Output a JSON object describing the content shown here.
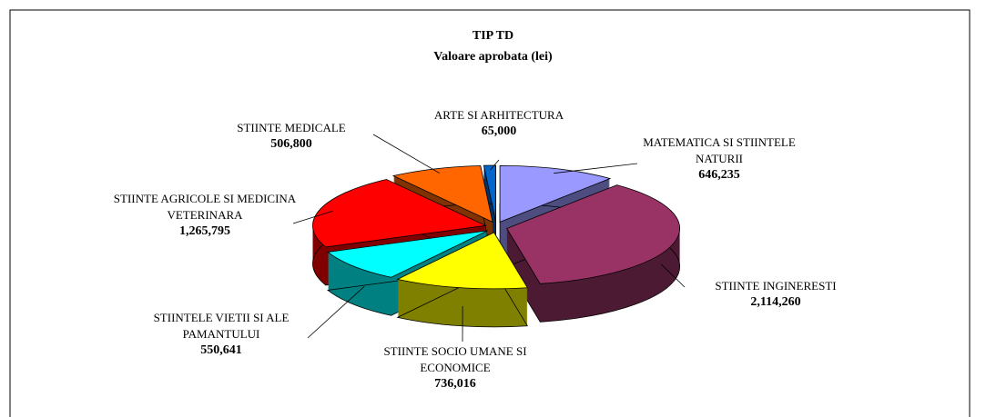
{
  "chart_data": {
    "type": "pie3d",
    "title": "TIP TD",
    "subtitle": "Valoare aprobata (lei)",
    "categories": [
      "MATEMATICA SI STIINTELE NATURII",
      "STIINTE INGINERESTI",
      "STIINTE SOCIO UMANE SI ECONOMICE",
      "STIINTELE VIETII SI ALE PAMANTULUI",
      "STIINTE AGRICOLE SI MEDICINA VETERINARA",
      "STIINTE MEDICALE",
      "ARTE SI ARHITECTURA"
    ],
    "values": [
      646235,
      2114260,
      736016,
      550641,
      1265795,
      506800,
      65000
    ],
    "value_labels": [
      "646,235",
      "2,114,260",
      "736,016",
      "550,641",
      "1,265,795",
      "506,800",
      "65,000"
    ],
    "colors": [
      "#9999ff",
      "#993366",
      "#ffff00",
      "#00ffff",
      "#ff0000",
      "#ff6600",
      "#0066cc"
    ],
    "side_colors": [
      "#4d4d80",
      "#4d1a33",
      "#808000",
      "#008080",
      "#800000",
      "#803300",
      "#003366"
    ]
  }
}
